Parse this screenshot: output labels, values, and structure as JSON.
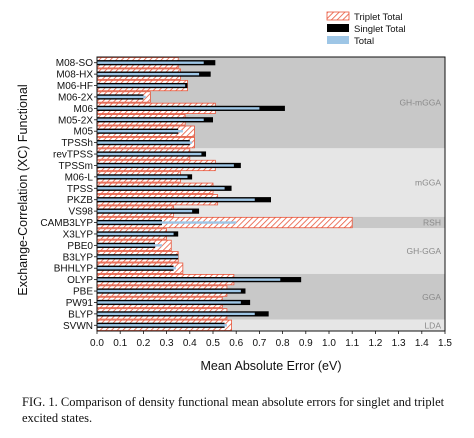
{
  "chart_data": {
    "type": "bar",
    "orientation": "horizontal",
    "xlabel": "Mean Absolute Error (eV)",
    "ylabel": "Exchange-Correlation (XC) Functional",
    "xlim": [
      0,
      1.5
    ],
    "xticks": [
      "0.0",
      "0.1",
      "0.2",
      "0.3",
      "0.4",
      "0.5",
      "0.6",
      "0.7",
      "0.8",
      "0.9",
      "1.0",
      "1.1",
      "1.2",
      "1.3",
      "1.4",
      "1.5"
    ],
    "legend_position": "top-right",
    "categories": [
      "M08-SO",
      "M08-HX",
      "M06-HF",
      "M06-2X",
      "M06",
      "M05-2X",
      "M05",
      "TPSSh",
      "revTPSS",
      "TPSSm",
      "M06-L",
      "TPSS",
      "PKZB",
      "VS98",
      "CAMB3LYP",
      "X3LYP",
      "PBE0",
      "B3LYP",
      "BHHLYP",
      "OLYP",
      "PBE",
      "PW91",
      "BLYP",
      "SVWN"
    ],
    "series": [
      {
        "name": "Triplet Total",
        "color": "#e8553a",
        "values": [
          0.35,
          0.36,
          0.39,
          0.23,
          0.51,
          0.38,
          0.42,
          0.42,
          0.4,
          0.51,
          0.36,
          0.5,
          0.52,
          0.33,
          1.1,
          0.3,
          0.32,
          0.35,
          0.37,
          0.59,
          0.56,
          0.54,
          0.56,
          0.58
        ]
      },
      {
        "name": "Singlet Total",
        "color": "#000000",
        "values": [
          0.51,
          0.49,
          0.39,
          0.2,
          0.81,
          0.5,
          0.35,
          0.4,
          0.47,
          0.62,
          0.41,
          0.58,
          0.75,
          0.44,
          0.28,
          0.35,
          0.25,
          0.35,
          0.33,
          0.88,
          0.64,
          0.66,
          0.74,
          0.55
        ]
      },
      {
        "name": "Total",
        "color": "#9ec6e6",
        "values": [
          0.46,
          0.44,
          0.38,
          0.21,
          0.7,
          0.46,
          0.37,
          0.41,
          0.45,
          0.59,
          0.39,
          0.55,
          0.68,
          0.41,
          0.6,
          0.33,
          0.28,
          0.35,
          0.34,
          0.79,
          0.62,
          0.62,
          0.68,
          0.56
        ]
      }
    ],
    "groups": [
      {
        "label": "GH-mGGA",
        "from": 0,
        "to": 7,
        "shade": "#c8c8c8"
      },
      {
        "label": "mGGA",
        "from": 8,
        "to": 13,
        "shade": "#e6e6e6"
      },
      {
        "label": "RSH",
        "from": 14,
        "to": 14,
        "shade": "#c8c8c8"
      },
      {
        "label": "GH-GGA",
        "from": 15,
        "to": 18,
        "shade": "#e6e6e6"
      },
      {
        "label": "GGA",
        "from": 19,
        "to": 22,
        "shade": "#c8c8c8"
      },
      {
        "label": "LDA",
        "from": 23,
        "to": 23,
        "shade": "#e6e6e6"
      }
    ],
    "grid": false
  },
  "caption": {
    "text": "FIG. 1.  Comparison of density functional mean absolute errors for singlet and triplet excited states."
  }
}
